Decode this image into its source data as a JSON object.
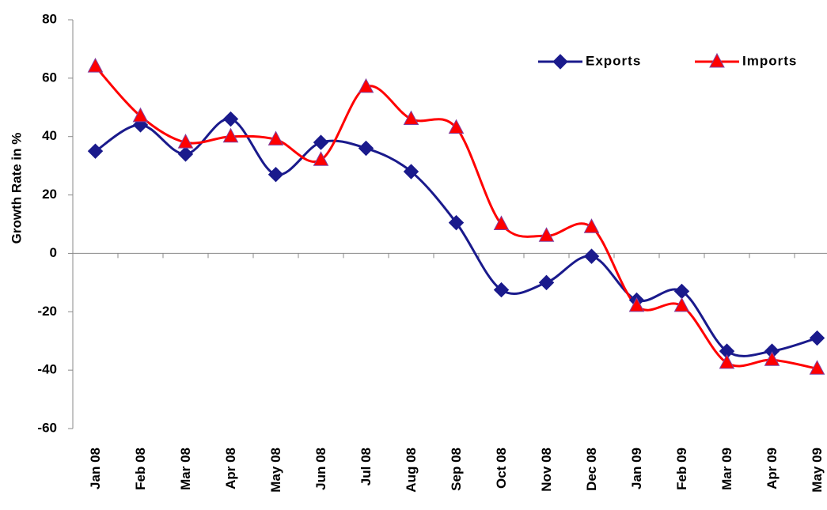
{
  "chart_data": {
    "type": "line",
    "y_label": "Growth Rate in %",
    "categories": [
      "Jan 08",
      "Feb 08",
      "Mar 08",
      "Apr 08",
      "May 08",
      "Jun 08",
      "Jul 08",
      "Aug 08",
      "Sep 08",
      "Oct 08",
      "Nov 08",
      "Dec 08",
      "Jan 09",
      "Feb 09",
      "Mar 09",
      "Apr 09",
      "May 09"
    ],
    "series": [
      {
        "name": "Exports",
        "color": "#1a1a8c",
        "values": [
          35,
          44,
          34,
          46,
          27,
          38,
          36,
          28,
          10.5,
          -12.5,
          -10,
          -1,
          -16,
          -13,
          -33.5,
          -33.5,
          -29
        ]
      },
      {
        "name": "Imports",
        "color": "#ff0000",
        "values": [
          64,
          47,
          38,
          40,
          39,
          32,
          57,
          46,
          43,
          10,
          6,
          9,
          -18,
          -18,
          -37.5,
          -36.5,
          -39.5
        ]
      }
    ],
    "ylim": [
      -60,
      80
    ],
    "yticks": [
      -60,
      -40,
      -20,
      0,
      20,
      40,
      60,
      80
    ],
    "legend": "top-right",
    "grid": false
  }
}
